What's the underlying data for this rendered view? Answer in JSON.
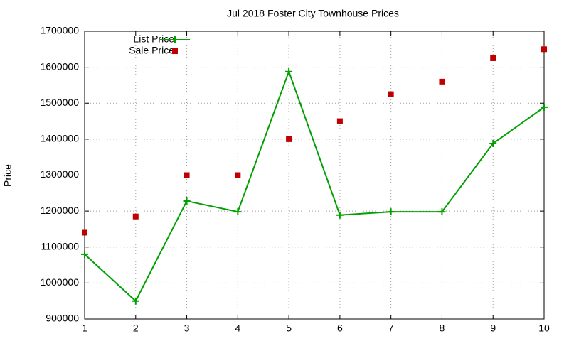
{
  "chart_data": {
    "type": "line",
    "title": "Jul 2018 Foster City Townhouse Prices",
    "y_label": "Price",
    "x": [
      1,
      2,
      3,
      4,
      5,
      6,
      7,
      8,
      9,
      10
    ],
    "series": [
      {
        "name": "List Price",
        "color": "#00a000",
        "style": "linespoints",
        "values": [
          1080000,
          950000,
          1228000,
          1198000,
          1588000,
          1189000,
          1198000,
          1198000,
          1388000,
          1489000
        ]
      },
      {
        "name": "Sale Price",
        "color": "#c00000",
        "style": "points",
        "values": [
          1140000,
          1185000,
          1300000,
          1300000,
          1400000,
          1450000,
          1525000,
          1560000,
          1625000,
          1650000
        ]
      }
    ],
    "xlim": [
      1,
      10
    ],
    "xticks": [
      1,
      2,
      3,
      4,
      5,
      6,
      7,
      8,
      9,
      10
    ],
    "ylim": [
      900000,
      1700000
    ],
    "yticks": [
      900000,
      1000000,
      1100000,
      1200000,
      1300000,
      1400000,
      1500000,
      1600000,
      1700000
    ],
    "grid": true,
    "legend": "top-left"
  }
}
